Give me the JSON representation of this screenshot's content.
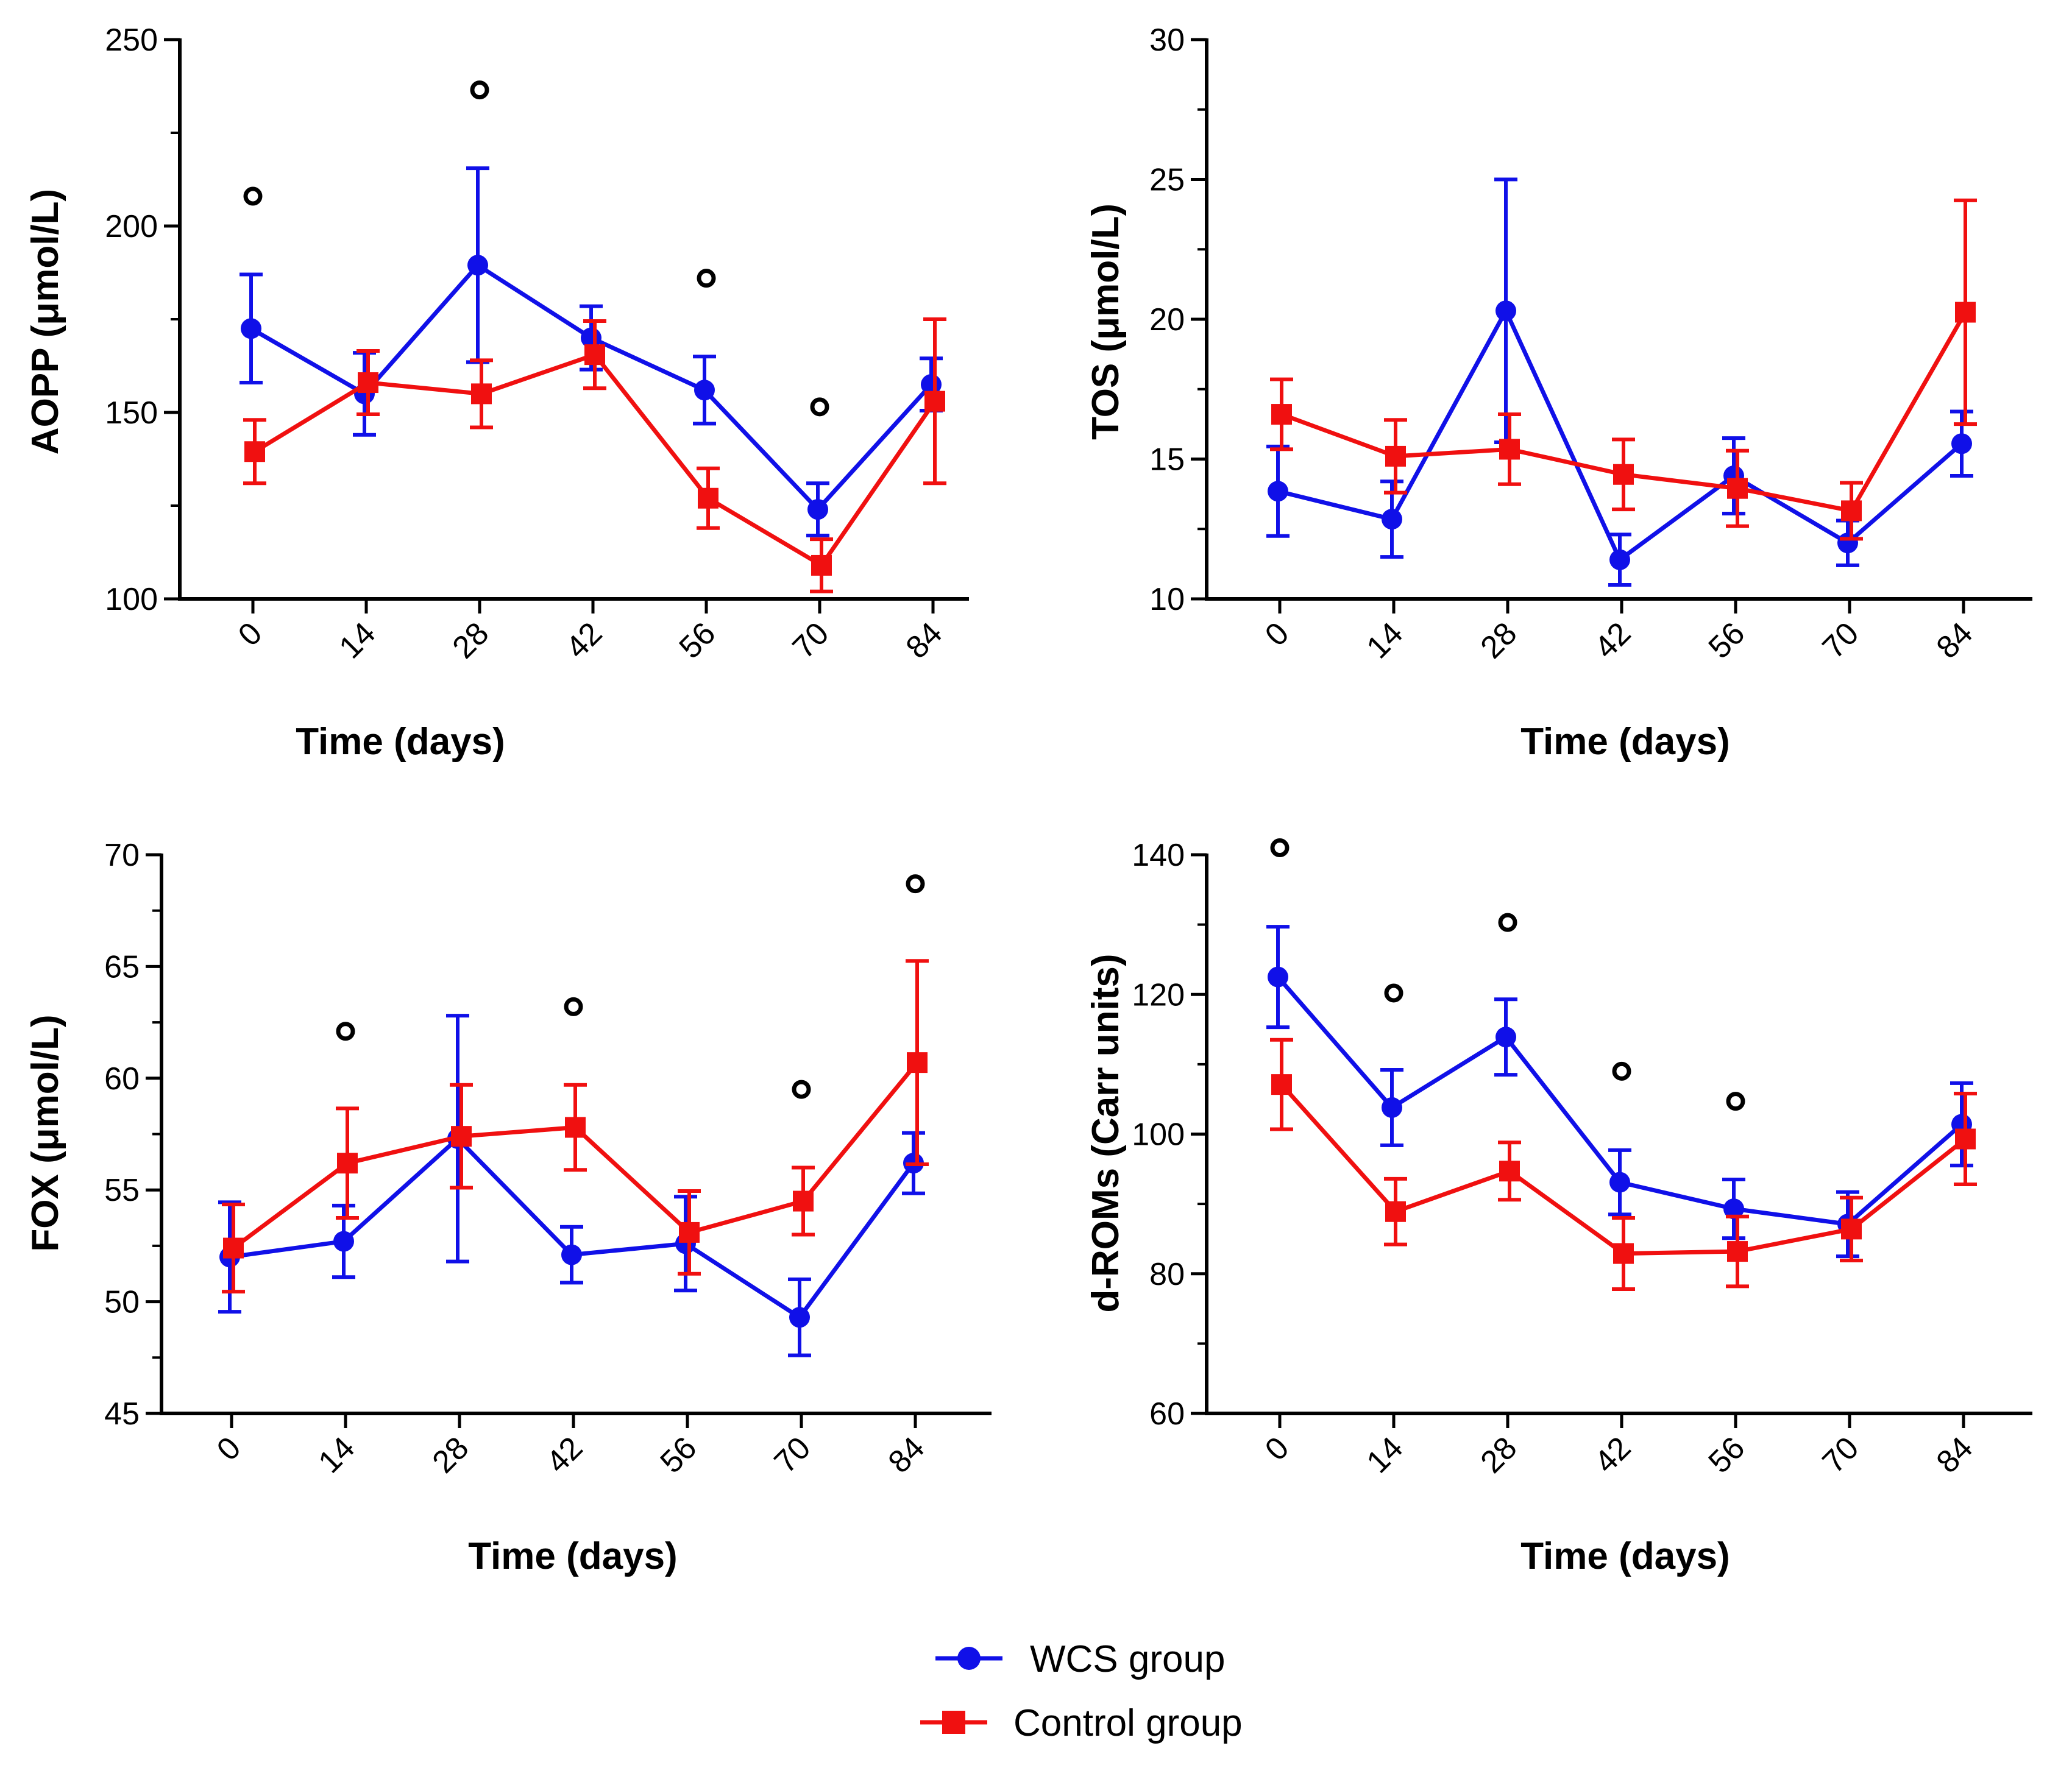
{
  "legend": {
    "wcs_label": "WCS group",
    "control_label": "Control group"
  },
  "colors": {
    "wcs": "#1010e8",
    "control": "#f01010",
    "sig": "#000000",
    "axis": "#000000"
  },
  "chart_data": [
    {
      "id": "aopp",
      "type": "line",
      "xlabel": "Time (days)",
      "ylabel": "AOPP (μmol/L)",
      "categories": [
        "0",
        "14",
        "28",
        "42",
        "56",
        "70",
        "84"
      ],
      "ylim": [
        100,
        250
      ],
      "yticks": [
        "100",
        "150",
        "200",
        "250"
      ],
      "series": [
        {
          "name": "WCS group",
          "values": [
            172.5,
            155,
            189.5,
            170,
            156,
            124,
            157.5
          ],
          "err": [
            14.5,
            11,
            26,
            8.5,
            9,
            7,
            7
          ]
        },
        {
          "name": "Control group",
          "values": [
            139.5,
            158,
            155,
            165.5,
            127,
            109,
            153
          ],
          "err": [
            8.5,
            8.5,
            9,
            9,
            8,
            7,
            22
          ]
        }
      ],
      "significance": [
        208,
        null,
        236.5,
        null,
        186,
        151.5,
        null
      ]
    },
    {
      "id": "tos",
      "type": "line",
      "xlabel": "Time (days)",
      "ylabel": "TOS (μmol/L)",
      "categories": [
        "0",
        "14",
        "28",
        "42",
        "56",
        "70",
        "84"
      ],
      "ylim": [
        10,
        30
      ],
      "yticks": [
        "10",
        "15",
        "20",
        "25",
        "30"
      ],
      "series": [
        {
          "name": "WCS group",
          "values": [
            13.85,
            12.85,
            20.3,
            11.4,
            14.4,
            12,
            15.55
          ],
          "err": [
            1.6,
            1.35,
            4.7,
            0.9,
            1.35,
            0.8,
            1.15
          ]
        },
        {
          "name": "Control group",
          "values": [
            16.6,
            15.1,
            15.35,
            14.45,
            13.95,
            13.15,
            20.25
          ],
          "err": [
            1.25,
            1.3,
            1.25,
            1.25,
            1.35,
            1.0,
            4.0
          ]
        }
      ],
      "significance": [
        null,
        null,
        null,
        null,
        null,
        null,
        null
      ]
    },
    {
      "id": "fox",
      "type": "line",
      "xlabel": "Time (days)",
      "ylabel": "FOX (μmol/L)",
      "categories": [
        "0",
        "14",
        "28",
        "42",
        "56",
        "70",
        "84"
      ],
      "ylim": [
        45,
        70
      ],
      "yticks": [
        "45",
        "50",
        "55",
        "60",
        "65",
        "70"
      ],
      "series": [
        {
          "name": "WCS group",
          "values": [
            52,
            52.7,
            57.3,
            52.1,
            52.6,
            49.3,
            56.2
          ],
          "err": [
            2.45,
            1.6,
            5.5,
            1.25,
            2.1,
            1.7,
            1.35
          ]
        },
        {
          "name": "Control group",
          "values": [
            52.4,
            56.2,
            57.4,
            57.8,
            53.1,
            54.5,
            60.7
          ],
          "err": [
            1.95,
            2.45,
            2.3,
            1.9,
            1.85,
            1.5,
            4.55
          ]
        }
      ],
      "significance": [
        null,
        62.1,
        null,
        63.2,
        null,
        59.5,
        68.7
      ]
    },
    {
      "id": "droms",
      "type": "line",
      "xlabel": "Time (days)",
      "ylabel": "d-ROMs (Carr units)",
      "categories": [
        "0",
        "14",
        "28",
        "42",
        "56",
        "70",
        "84"
      ],
      "ylim": [
        60,
        140
      ],
      "yticks": [
        "60",
        "80",
        "100",
        "120",
        "140"
      ],
      "series": [
        {
          "name": "WCS group",
          "values": [
            122.5,
            103.8,
            113.9,
            93.1,
            89.3,
            87.1,
            101.4
          ],
          "err": [
            7.2,
            5.4,
            5.4,
            4.6,
            4.2,
            4.6,
            5.9
          ]
        },
        {
          "name": "Control group",
          "values": [
            107.1,
            88.9,
            94.7,
            82.9,
            83.2,
            86.4,
            99.3
          ],
          "err": [
            6.4,
            4.7,
            4.1,
            5.1,
            5.0,
            4.5,
            6.5
          ]
        }
      ],
      "significance": [
        141,
        120.2,
        130.3,
        109,
        104.7,
        null,
        null
      ]
    }
  ]
}
